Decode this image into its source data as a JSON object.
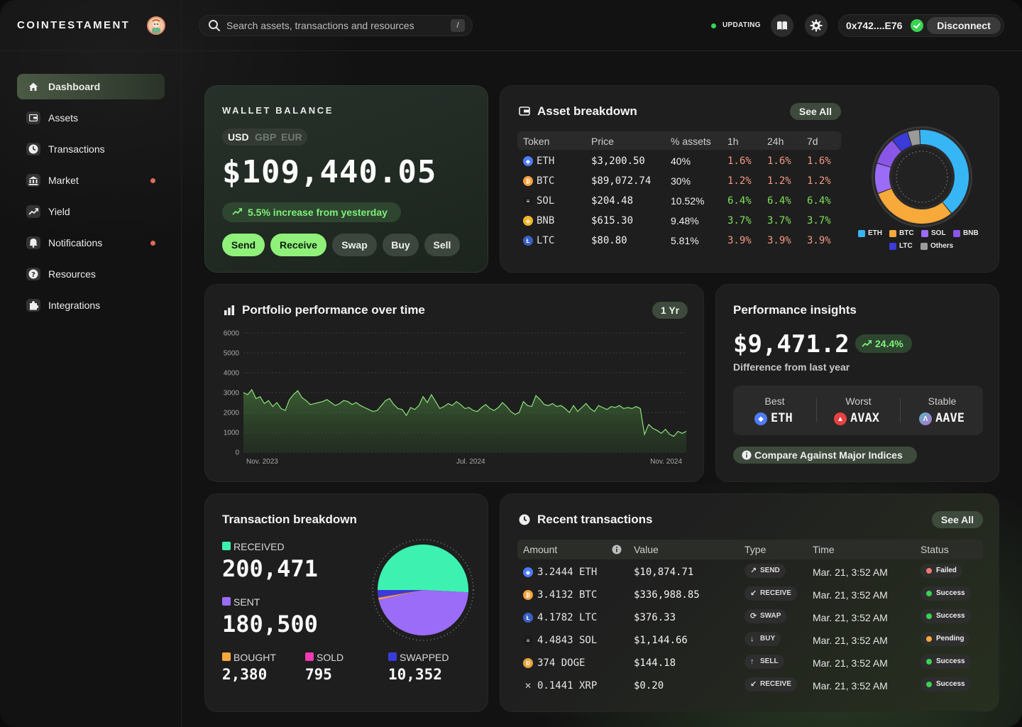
{
  "brand": {
    "name": "COINTESTAMENT"
  },
  "search": {
    "placeholder": "Search assets, transactions and resources",
    "shortcut": "/"
  },
  "status": {
    "label": "UPDATING",
    "color": "#39d353"
  },
  "wallet": {
    "address": "0x742....E76",
    "disconnect_label": "Disconnect"
  },
  "sidebar": {
    "items": [
      {
        "label": "Dashboard",
        "icon": "home-icon",
        "active": true,
        "badge": false
      },
      {
        "label": "Assets",
        "icon": "wallet-icon",
        "active": false,
        "badge": false
      },
      {
        "label": "Transactions",
        "icon": "clock-icon",
        "active": false,
        "badge": false
      },
      {
        "label": "Market",
        "icon": "bank-icon",
        "active": false,
        "badge": true
      },
      {
        "label": "Yield",
        "icon": "trend-up-icon",
        "active": false,
        "badge": false
      },
      {
        "label": "Notifications",
        "icon": "bell-icon",
        "active": false,
        "badge": true
      },
      {
        "label": "Resources",
        "icon": "question-icon",
        "active": false,
        "badge": false
      },
      {
        "label": "Integrations",
        "icon": "puzzle-icon",
        "active": false,
        "badge": false
      }
    ]
  },
  "balance": {
    "title": "WALLET BALANCE",
    "currencies": [
      "USD",
      "GBP",
      "EUR"
    ],
    "amount": "$109,440.05",
    "change": "5.5% increase from yesterday",
    "actions": [
      "Send",
      "Receive",
      "Swap",
      "Buy",
      "Sell"
    ]
  },
  "assets": {
    "title": "Asset breakdown",
    "see_all": "See All",
    "columns": [
      "Token",
      "Price",
      "% assets",
      "1h",
      "24h",
      "7d"
    ],
    "rows": [
      {
        "token": "ETH",
        "price": "$3,200.50",
        "pct": "40%",
        "h1": "1.6%",
        "h24": "1.6%",
        "d7": "1.6%",
        "trend": "down",
        "color": "#4f7cf7"
      },
      {
        "token": "BTC",
        "price": "$89,072.74",
        "pct": "30%",
        "h1": "1.2%",
        "h24": "1.2%",
        "d7": "1.2%",
        "trend": "down",
        "color": "#f7a13a"
      },
      {
        "token": "SOL",
        "price": "$204.48",
        "pct": "10.52%",
        "h1": "6.4%",
        "h24": "6.4%",
        "d7": "6.4%",
        "trend": "up",
        "color": "#1b1b1b"
      },
      {
        "token": "BNB",
        "price": "$615.30",
        "pct": "9.48%",
        "h1": "3.7%",
        "h24": "3.7%",
        "d7": "3.7%",
        "trend": "up",
        "color": "#f3b62b"
      },
      {
        "token": "LTC",
        "price": "$80.80",
        "pct": "5.81%",
        "h1": "3.9%",
        "h24": "3.9%",
        "d7": "3.9%",
        "trend": "down",
        "color": "#3a5fc4"
      }
    ],
    "up_color": "#7fe05a",
    "down_color": "#f29a7f"
  },
  "chart_data": [
    {
      "type": "pie",
      "title": "Asset breakdown",
      "categories": [
        "ETH",
        "BTC",
        "SOL",
        "BNB",
        "LTC",
        "Others"
      ],
      "values": [
        40,
        30,
        10.52,
        9.48,
        5.81,
        4.19
      ],
      "colors": [
        "#37b6f6",
        "#f7a93a",
        "#9b6cf7",
        "#8a56e8",
        "#3b3bd9",
        "#9a9a9a"
      ]
    },
    {
      "type": "area",
      "title": "Portfolio performance over time",
      "range_label": "1 Yr",
      "x_ticks": [
        "Nov. 2023",
        "Jul. 2024",
        "Nov. 2024"
      ],
      "y_ticks": [
        0,
        1000,
        2000,
        3000,
        4000,
        5000,
        6000
      ],
      "ylim": [
        0,
        6000
      ],
      "values": [
        3000,
        2900,
        3150,
        2700,
        2800,
        2450,
        2600,
        2300,
        2500,
        2200,
        2100,
        2650,
        2900,
        3100,
        2750,
        2600,
        2400,
        2450,
        2500,
        2550,
        2650,
        2500,
        2350,
        2450,
        2600,
        2550,
        2400,
        2500,
        2350,
        2250,
        2150,
        2050,
        2100,
        2350,
        2600,
        2700,
        2400,
        2200,
        2150,
        1850,
        2250,
        2150,
        2350,
        2800,
        2500,
        2900,
        2550,
        2200,
        2300,
        2450,
        2350,
        2550,
        2400,
        2200,
        2250,
        2100,
        2050,
        2250,
        2400,
        2200,
        2100,
        2250,
        2500,
        2300,
        2050,
        1900,
        2000,
        2550,
        2350,
        2300,
        2850,
        2650,
        2400,
        2350,
        2450,
        2300,
        2350,
        2200,
        2000,
        2350,
        2050,
        2250,
        2450,
        2200,
        2050,
        2350,
        2250,
        2150,
        2300,
        2250,
        2350,
        2200,
        2250,
        2200,
        2300,
        2200,
        900,
        1400,
        1200,
        1100,
        950,
        1150,
        900,
        800,
        1050,
        950,
        1050
      ]
    },
    {
      "type": "pie",
      "title": "Transaction breakdown",
      "categories": [
        "RECEIVED",
        "SENT",
        "BOUGHT",
        "SOLD",
        "SWAPPED"
      ],
      "values": [
        200471,
        180500,
        2380,
        795,
        10352
      ],
      "colors": [
        "#3df2b0",
        "#9b6cf7",
        "#f7a93a",
        "#f23bb0",
        "#3b3bd9"
      ]
    }
  ],
  "portfolio": {
    "title": "Portfolio performance over time",
    "range": "1 Yr"
  },
  "insights": {
    "title": "Performance insights",
    "amount": "$9,471.2",
    "change": "24.4%",
    "caption": "Difference from last year",
    "best_label": "Best",
    "best": "ETH",
    "worst_label": "Worst",
    "worst": "AVAX",
    "stable_label": "Stable",
    "stable": "AAVE",
    "compare": "Compare Against Major Indices"
  },
  "tx_breakdown": {
    "title": "Transaction breakdown",
    "received_label": "RECEIVED",
    "received": "200,471",
    "sent_label": "SENT",
    "sent": "180,500",
    "bought_label": "BOUGHT",
    "bought": "2,380",
    "sold_label": "SOLD",
    "sold": "795",
    "swapped_label": "SWAPPED",
    "swapped": "10,352"
  },
  "recent": {
    "title": "Recent transactions",
    "see_all": "See All",
    "columns": [
      "Amount",
      "Value",
      "Type",
      "Time",
      "Status"
    ],
    "rows": [
      {
        "amount": "3.2444 ETH",
        "value": "$10,874.71",
        "type": "SEND",
        "type_icon": "↗",
        "time": "Mar. 21, 3:52 AM",
        "status": "Failed",
        "status_color": "#f07a6a",
        "coin_color": "#4f7cf7",
        "coin": "◆"
      },
      {
        "amount": "3.4132 BTC",
        "value": "$336,988.85",
        "type": "RECEIVE",
        "type_icon": "↙",
        "time": "Mar. 21, 3:52 AM",
        "status": "Success",
        "status_color": "#39d353",
        "coin_color": "#f7a13a",
        "coin": "₿"
      },
      {
        "amount": "4.1782 LTC",
        "value": "$376.33",
        "type": "SWAP",
        "type_icon": "⟳",
        "time": "Mar. 21, 3:52 AM",
        "status": "Success",
        "status_color": "#39d353",
        "coin_color": "#3a5fc4",
        "coin": "Ł"
      },
      {
        "amount": "4.4843 SOL",
        "value": "$1,144.66",
        "type": "BUY",
        "type_icon": "↓",
        "time": "Mar. 21, 3:52 AM",
        "status": "Pending",
        "status_color": "#f7a93a",
        "coin_color": "#1b1b1b",
        "coin": "≡"
      },
      {
        "amount": "374 DOGE",
        "value": "$144.18",
        "type": "SELL",
        "type_icon": "↑",
        "time": "Mar. 21, 3:52 AM",
        "status": "Success",
        "status_color": "#39d353",
        "coin_color": "#e8a33a",
        "coin": "Ð"
      },
      {
        "amount": "0.1441 XRP",
        "value": "$0.20",
        "type": "RECEIVE",
        "type_icon": "↙",
        "time": "Mar. 21, 3:52 AM",
        "status": "Success",
        "status_color": "#39d353",
        "coin_color": "transparent",
        "coin": "✕"
      }
    ]
  }
}
